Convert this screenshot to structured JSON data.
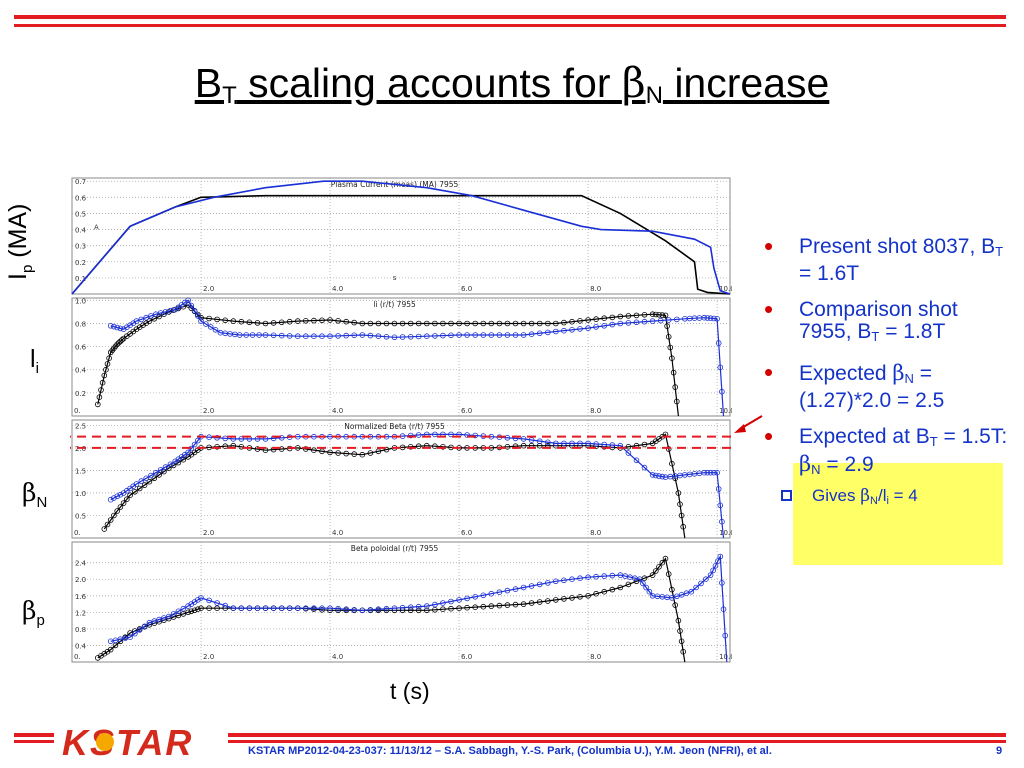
{
  "slide": {
    "title": {
      "part1": "B",
      "sub1": "T",
      "part2": " scaling accounts for ",
      "greek": "β",
      "sub2": "N",
      "part3": " increase"
    },
    "ylabels": {
      "ip": {
        "base": "I",
        "sub": "p",
        "unit": " (MA)"
      },
      "li": {
        "base": "l",
        "sub": "i"
      },
      "bn": {
        "base": "β",
        "sub": "N"
      },
      "bp": {
        "base": "β",
        "sub": "p"
      }
    },
    "xlabel": "t (s)",
    "bullets": [
      {
        "pre": "Present shot 8037, B",
        "sub": "T",
        "post": " = 1.6T"
      },
      {
        "pre": "Comparison shot 7955, B",
        "sub": "T",
        "post": " = 1.8T"
      },
      {
        "pre": "Expected ",
        "greek": "β",
        "sub": "N",
        "post": " = (1.27)*2.0 = 2.5"
      },
      {
        "pre": "Expected at B",
        "sub": "T",
        "mid": " = 1.5T: ",
        "greek": "β",
        "sub2": "N",
        "post": " = 2.9"
      }
    ],
    "sub_bullet": {
      "pre": "Gives ",
      "greek": "β",
      "sub": "N",
      "mid": "/l",
      "sub2": "i",
      "post": " = 4"
    },
    "footer": {
      "logo": "KSTAR",
      "text": "KSTAR MP2012-04-23-037: 11/13/12 – S.A. Sabbagh, Y.-S. Park, (Columbia U.), Y.M. Jeon (NFRI), et al.",
      "page": "9"
    },
    "colors": {
      "accent_red": "#e31b23",
      "text_blue": "#1433c8",
      "highlight": "#ffff66",
      "shot_8037": "#1a2fd6",
      "shot_7955": "#000000"
    }
  },
  "chart_data": [
    {
      "type": "line",
      "title": "Plasma Current (meas) (MA) 7955",
      "xlabel": "s",
      "ylabel": "A",
      "xlim": [
        0,
        10.2
      ],
      "ylim": [
        0,
        0.72
      ],
      "xticks": [
        "2.0",
        "4.0",
        "6.0",
        "8.0",
        "10.0"
      ],
      "yticks": [
        "0.1",
        "0.2",
        "0.3",
        "0.4",
        "0.5",
        "0.6",
        "0.7"
      ],
      "series": [
        {
          "color": "#000000",
          "x": [
            0.0,
            0.9,
            1.6,
            2.0,
            3.0,
            5.0,
            7.0,
            7.9,
            8.5,
            9.2,
            9.65,
            9.7,
            9.85,
            10.2
          ],
          "y": [
            0.0,
            0.42,
            0.54,
            0.6,
            0.61,
            0.61,
            0.61,
            0.61,
            0.5,
            0.33,
            0.2,
            0.03,
            0.01,
            0.0
          ]
        },
        {
          "color": "#1a2fd6",
          "x": [
            0.0,
            0.9,
            1.6,
            2.2,
            3.0,
            3.9,
            4.5,
            5.5,
            6.2,
            7.0,
            7.9,
            8.2,
            9.0,
            9.65,
            9.9,
            9.95,
            10.05,
            10.2
          ],
          "y": [
            0.0,
            0.42,
            0.54,
            0.6,
            0.66,
            0.7,
            0.7,
            0.66,
            0.61,
            0.52,
            0.42,
            0.4,
            0.39,
            0.34,
            0.29,
            0.16,
            0.02,
            0.0
          ]
        }
      ]
    },
    {
      "type": "line",
      "title": "li (r/t) 7955",
      "xlim": [
        0,
        10.2
      ],
      "ylim": [
        0,
        1.02
      ],
      "xticks": [
        "0.",
        "2.0",
        "4.0",
        "6.0",
        "8.0",
        "10.0"
      ],
      "yticks": [
        "0.2",
        "0.4",
        "0.6",
        "0.8",
        "1.0"
      ],
      "series": [
        {
          "color": "#000000",
          "x": [
            0.4,
            0.5,
            0.6,
            0.7,
            0.8,
            1.0,
            1.2,
            1.5,
            1.8,
            2.0,
            2.5,
            3.0,
            3.5,
            4.0,
            4.5,
            5.0,
            5.5,
            6.0,
            6.5,
            7.0,
            7.5,
            8.0,
            8.5,
            9.0,
            9.2,
            9.3,
            9.4
          ],
          "y": [
            0.1,
            0.35,
            0.55,
            0.62,
            0.67,
            0.75,
            0.82,
            0.9,
            0.96,
            0.85,
            0.82,
            0.8,
            0.82,
            0.83,
            0.8,
            0.8,
            0.8,
            0.8,
            0.8,
            0.8,
            0.8,
            0.83,
            0.86,
            0.88,
            0.87,
            0.5,
            0.0
          ]
        },
        {
          "color": "#1a2fd6",
          "x": [
            0.6,
            0.8,
            1.0,
            1.3,
            1.6,
            1.8,
            2.0,
            2.3,
            2.6,
            3.0,
            3.5,
            4.0,
            4.5,
            5.0,
            5.5,
            6.0,
            6.5,
            7.0,
            7.5,
            8.0,
            8.5,
            9.0,
            9.5,
            9.8,
            10.0,
            10.1
          ],
          "y": [
            0.78,
            0.75,
            0.82,
            0.88,
            0.92,
            1.0,
            0.82,
            0.72,
            0.7,
            0.7,
            0.69,
            0.69,
            0.7,
            0.68,
            0.69,
            0.7,
            0.7,
            0.7,
            0.73,
            0.76,
            0.8,
            0.82,
            0.84,
            0.85,
            0.84,
            0.0
          ]
        }
      ]
    },
    {
      "type": "line",
      "title": "Normalized Beta (r/t) 7955",
      "xlim": [
        0,
        10.2
      ],
      "ylim": [
        0,
        2.62
      ],
      "xticks": [
        "0.",
        "2.0",
        "4.0",
        "6.0",
        "8.0",
        "10.0"
      ],
      "yticks": [
        "0.5",
        "1.0",
        "1.5",
        "2.0",
        "2.5"
      ],
      "reference_lines": [
        2.0,
        2.25
      ],
      "series": [
        {
          "color": "#000000",
          "x": [
            0.5,
            0.7,
            0.9,
            1.2,
            1.5,
            1.8,
            2.0,
            2.5,
            3.0,
            3.5,
            4.0,
            4.5,
            5.0,
            5.5,
            6.0,
            6.5,
            7.0,
            7.5,
            8.0,
            8.5,
            9.0,
            9.2,
            9.4,
            9.5
          ],
          "y": [
            0.2,
            0.6,
            0.95,
            1.25,
            1.55,
            1.8,
            2.0,
            2.05,
            1.95,
            2.0,
            1.9,
            1.85,
            2.0,
            2.05,
            2.0,
            2.0,
            2.05,
            2.05,
            2.05,
            2.0,
            2.1,
            2.3,
            1.0,
            0.0
          ]
        },
        {
          "color": "#1a2fd6",
          "x": [
            0.6,
            0.8,
            1.0,
            1.3,
            1.6,
            1.8,
            2.0,
            2.5,
            3.0,
            3.5,
            4.0,
            4.5,
            5.0,
            5.5,
            6.0,
            6.5,
            7.0,
            7.5,
            8.0,
            8.5,
            9.0,
            9.2,
            9.5,
            9.8,
            10.0,
            10.1
          ],
          "y": [
            0.85,
            1.0,
            1.2,
            1.45,
            1.7,
            1.9,
            2.25,
            2.2,
            2.2,
            2.25,
            2.25,
            2.25,
            2.25,
            2.3,
            2.3,
            2.25,
            2.2,
            2.1,
            2.1,
            2.05,
            1.4,
            1.35,
            1.4,
            1.45,
            1.45,
            0.0
          ]
        }
      ]
    },
    {
      "type": "line",
      "title": "Beta poloidal (r/t) 7955",
      "xlim": [
        0,
        10.2
      ],
      "ylim": [
        0,
        2.9
      ],
      "xticks": [
        "0.",
        "2.0",
        "4.0",
        "6.0",
        "8.0",
        "10.0"
      ],
      "yticks": [
        "0.4",
        "0.8",
        "1.2",
        "1.6",
        "2.0",
        "2.4"
      ],
      "series": [
        {
          "color": "#000000",
          "x": [
            0.4,
            0.6,
            0.9,
            1.2,
            1.5,
            1.8,
            2.0,
            2.5,
            3.0,
            3.5,
            4.0,
            4.5,
            5.0,
            5.5,
            6.0,
            6.5,
            7.0,
            7.5,
            8.0,
            8.5,
            9.0,
            9.2,
            9.4,
            9.5
          ],
          "y": [
            0.1,
            0.3,
            0.7,
            0.9,
            1.05,
            1.2,
            1.3,
            1.3,
            1.3,
            1.3,
            1.25,
            1.25,
            1.25,
            1.25,
            1.3,
            1.35,
            1.4,
            1.5,
            1.6,
            1.8,
            2.1,
            2.5,
            1.0,
            0.0
          ]
        },
        {
          "color": "#1a2fd6",
          "x": [
            0.6,
            0.9,
            1.2,
            1.5,
            1.8,
            2.0,
            2.5,
            3.0,
            3.5,
            4.0,
            4.5,
            5.0,
            5.5,
            6.0,
            6.5,
            7.0,
            7.5,
            8.0,
            8.5,
            8.8,
            9.0,
            9.3,
            9.6,
            9.9,
            10.05,
            10.15
          ],
          "y": [
            0.5,
            0.6,
            0.95,
            1.1,
            1.35,
            1.55,
            1.3,
            1.3,
            1.3,
            1.3,
            1.25,
            1.3,
            1.35,
            1.5,
            1.65,
            1.8,
            1.95,
            2.05,
            2.1,
            2.0,
            1.6,
            1.55,
            1.7,
            2.1,
            2.55,
            0.0
          ]
        }
      ]
    }
  ]
}
